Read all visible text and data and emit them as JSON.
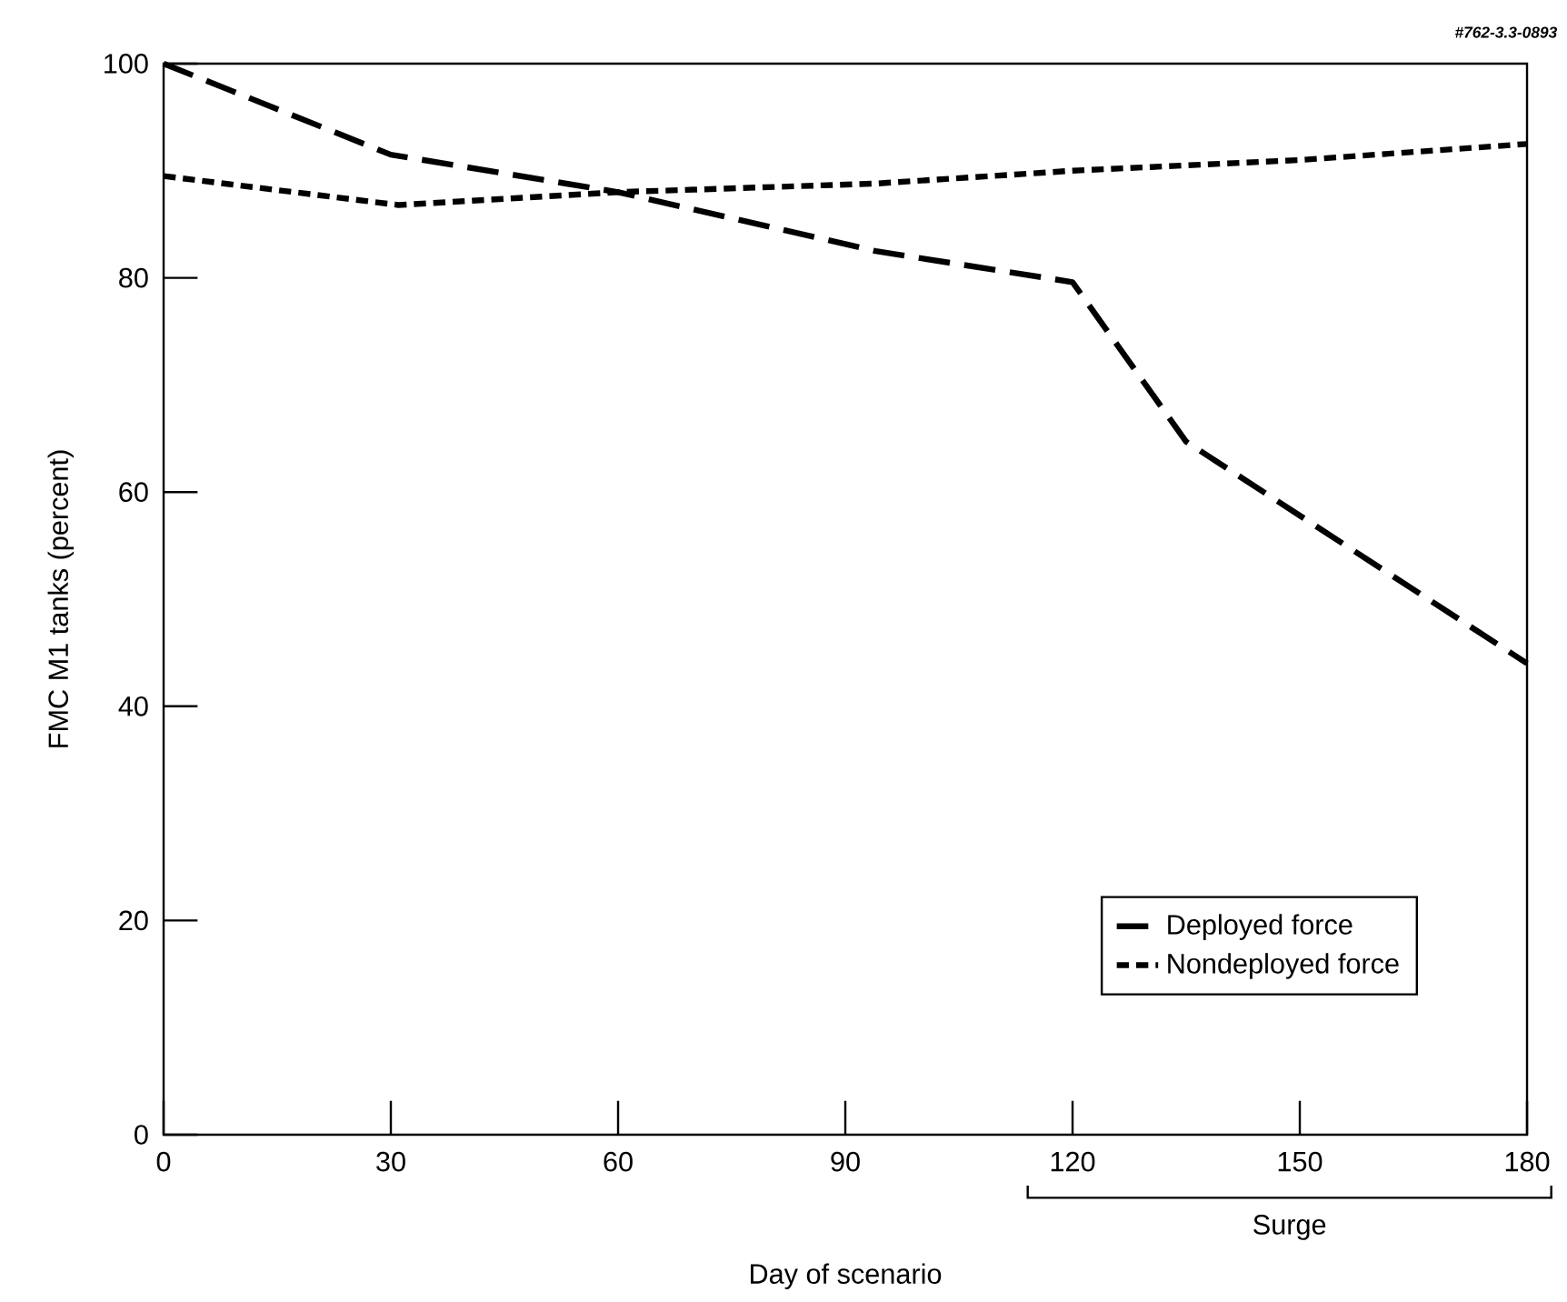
{
  "chart_data": {
    "type": "line",
    "xlabel": "Day of scenario",
    "ylabel": "FMC M1 tanks (percent)",
    "annotations": [
      "#762-3.3-0893",
      "Surge"
    ],
    "series": [
      {
        "name": "Deployed force",
        "color": "#000000",
        "line_style": "dashed",
        "x": [
          0,
          30,
          60,
          94,
          120,
          135,
          180
        ],
        "values": [
          100,
          91.5,
          88,
          82.5,
          79.6,
          64.7,
          44
        ]
      },
      {
        "name": "Nondeployed force",
        "color": "#000000",
        "line_style": "dotted",
        "x": [
          0,
          31,
          60,
          94,
          120,
          150,
          180
        ],
        "values": [
          89.5,
          86.8,
          88,
          88.8,
          90,
          91,
          92.5
        ]
      }
    ],
    "xlim": [
      0,
      180
    ],
    "ylim": [
      0,
      100
    ],
    "xticks": [
      0,
      30,
      60,
      90,
      120,
      150,
      180
    ],
    "yticks": [
      0,
      20,
      40,
      60,
      80,
      100
    ],
    "grid": false,
    "legend": "bottom right",
    "marker": "none"
  }
}
